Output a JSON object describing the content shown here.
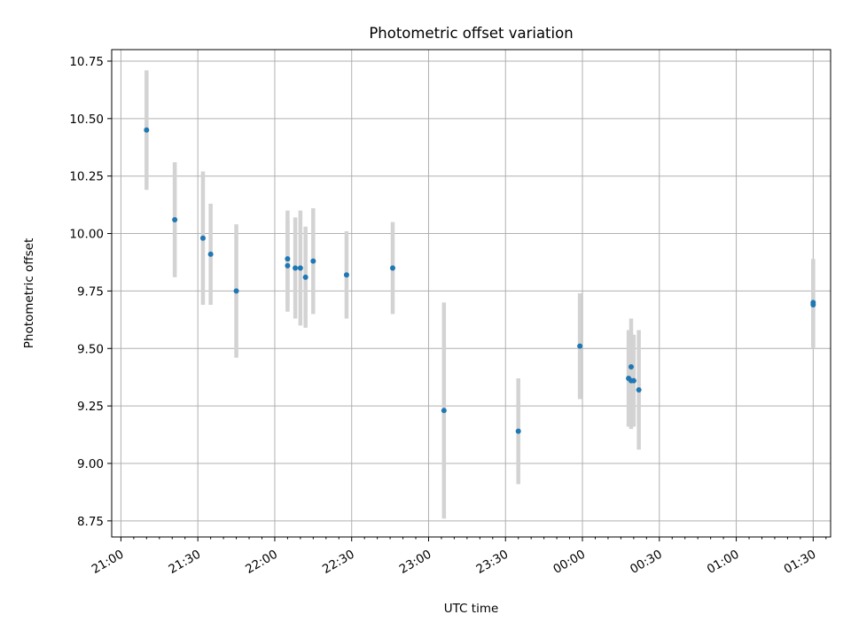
{
  "chart_data": {
    "type": "scatter",
    "title": "Photometric offset variation",
    "xlabel": "UTC time",
    "ylabel": "Photometric offset",
    "x_tick_labels": [
      "21:00",
      "21:30",
      "22:00",
      "22:30",
      "23:00",
      "23:30",
      "00:00",
      "00:30",
      "01:00",
      "01:30"
    ],
    "y_tick_labels": [
      "8.75",
      "9.00",
      "9.25",
      "9.50",
      "9.75",
      "10.00",
      "10.25",
      "10.50",
      "10.75"
    ],
    "y_ticks": [
      8.75,
      9.0,
      9.25,
      9.5,
      9.75,
      10.0,
      10.25,
      10.5,
      10.75
    ],
    "xlim": [
      "21:00",
      "01:35"
    ],
    "ylim": [
      8.68,
      10.8
    ],
    "grid": true,
    "marker_color": "#1f77b4",
    "errorbar_color": "#d3d3d3",
    "points": [
      {
        "time": "21:10",
        "y": 10.45,
        "yerr": 0.26
      },
      {
        "time": "21:21",
        "y": 10.06,
        "yerr": 0.25
      },
      {
        "time": "21:32",
        "y": 9.98,
        "yerr": 0.29
      },
      {
        "time": "21:35",
        "y": 9.91,
        "yerr": 0.22
      },
      {
        "time": "21:45",
        "y": 9.75,
        "yerr": 0.29
      },
      {
        "time": "22:05",
        "y": 9.86,
        "yerr": 0.2
      },
      {
        "time": "22:05",
        "y": 9.89,
        "yerr": 0.21
      },
      {
        "time": "22:08",
        "y": 9.85,
        "yerr": 0.22
      },
      {
        "time": "22:10",
        "y": 9.85,
        "yerr": 0.25
      },
      {
        "time": "22:12",
        "y": 9.81,
        "yerr": 0.22
      },
      {
        "time": "22:15",
        "y": 9.88,
        "yerr": 0.23
      },
      {
        "time": "22:28",
        "y": 9.82,
        "yerr": 0.19
      },
      {
        "time": "22:46",
        "y": 9.85,
        "yerr": 0.2
      },
      {
        "time": "23:06",
        "y": 9.23,
        "yerr": 0.47
      },
      {
        "time": "23:35",
        "y": 9.14,
        "yerr": 0.23
      },
      {
        "time": "23:59",
        "y": 9.51,
        "yerr": 0.23
      },
      {
        "time": "00:18",
        "y": 9.37,
        "yerr": 0.21
      },
      {
        "time": "00:19",
        "y": 9.42,
        "yerr": 0.21
      },
      {
        "time": "00:19",
        "y": 9.36,
        "yerr": 0.21
      },
      {
        "time": "00:20",
        "y": 9.36,
        "yerr": 0.2
      },
      {
        "time": "00:22",
        "y": 9.32,
        "yerr": 0.26
      },
      {
        "time": "01:30",
        "y": 9.7,
        "yerr": 0.19
      },
      {
        "time": "01:30",
        "y": 9.69,
        "yerr": 0.19
      }
    ]
  }
}
